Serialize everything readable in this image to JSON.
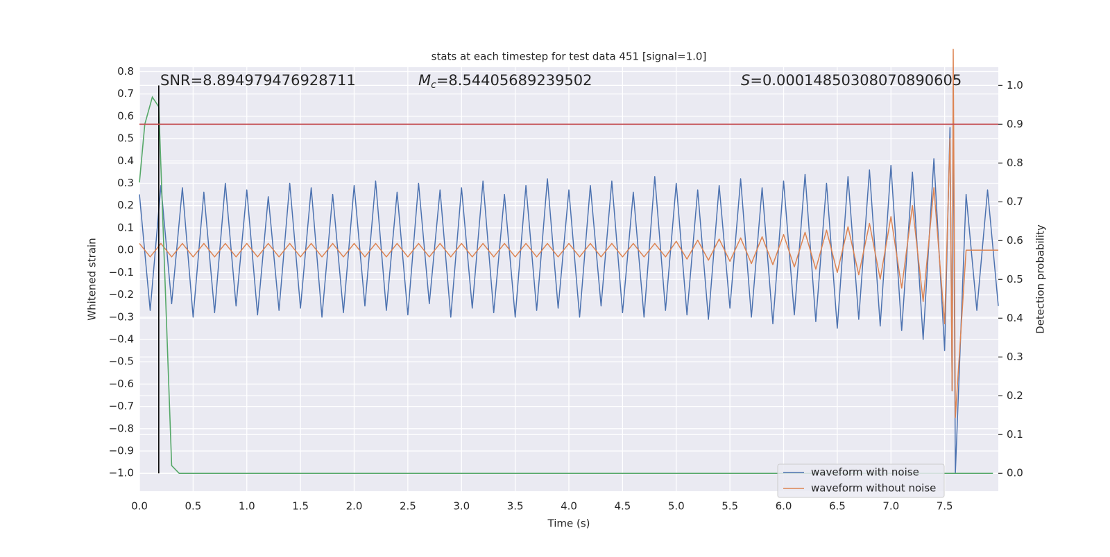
{
  "chart_data": {
    "type": "line",
    "title": "stats at each timestep for test data 451 [signal=1.0]",
    "xlabel": "Time (s)",
    "ylabel": "Whitened strain",
    "y2label": "Detection probability",
    "annotations": [
      {
        "text": "SNR=8.894979476928711"
      },
      {
        "symbol": "M",
        "subscript": "c",
        "text": "=8.54405689239502"
      },
      {
        "symbol": "S",
        "text": "=0.00014850308070890605"
      }
    ],
    "xlim": [
      0,
      8.0
    ],
    "ylim": [
      -1.08,
      0.82
    ],
    "y2lim": [
      -0.046,
      1.047
    ],
    "xticks": [
      {
        "value": 0,
        "label": "0.0"
      },
      0.5,
      {
        "value": 1,
        "label": "1.0"
      },
      1.5,
      {
        "value": 2,
        "label": "2.0"
      },
      2.5,
      {
        "value": 3,
        "label": "3.0"
      },
      3.5,
      {
        "value": 4,
        "label": "4.0"
      },
      4.5,
      {
        "value": 5,
        "label": "5.0"
      },
      5.5,
      {
        "value": 6,
        "label": "6.0"
      },
      6.5,
      {
        "value": 7,
        "label": "7.0"
      },
      7.5
    ],
    "yticks": [
      {
        "value": -1,
        "label": "−1.0"
      },
      {
        "value": -0.9,
        "label": "−0.9"
      },
      {
        "value": -0.8,
        "label": "−0.8"
      },
      {
        "value": -0.7,
        "label": "−0.7"
      },
      {
        "value": -0.6,
        "label": "−0.6"
      },
      {
        "value": -0.5,
        "label": "−0.5"
      },
      {
        "value": -0.4,
        "label": "−0.4"
      },
      {
        "value": -0.3,
        "label": "−0.3"
      },
      {
        "value": -0.2,
        "label": "−0.2"
      },
      {
        "value": -0.1,
        "label": "−0.1"
      },
      {
        "value": 0,
        "label": "0.0"
      },
      0.1,
      0.2,
      0.3,
      0.4,
      0.5,
      0.6,
      0.7,
      0.8
    ],
    "y2ticks": [
      {
        "value": 0,
        "label": "0.0"
      },
      0.1,
      0.2,
      0.3,
      0.4,
      0.5,
      0.6,
      0.7,
      0.8,
      0.9,
      {
        "value": 1,
        "label": "1.0"
      }
    ],
    "grid": true,
    "legend": "lower right",
    "x": [
      0.0,
      0.1,
      0.2,
      0.3,
      0.4,
      0.5,
      0.6,
      0.7,
      0.8,
      0.9,
      1.0,
      1.1,
      1.2,
      1.3,
      1.4,
      1.5,
      1.6,
      1.7,
      1.8,
      1.9,
      2.0,
      2.1,
      2.2,
      2.3,
      2.4,
      2.5,
      2.6,
      2.7,
      2.8,
      2.9,
      3.0,
      3.1,
      3.2,
      3.3,
      3.4,
      3.5,
      3.6,
      3.7,
      3.8,
      3.9,
      4.0,
      4.1,
      4.2,
      4.3,
      4.4,
      4.5,
      4.6,
      4.7,
      4.8,
      4.9,
      5.0,
      5.1,
      5.2,
      5.3,
      5.4,
      5.5,
      5.6,
      5.7,
      5.8,
      5.9,
      6.0,
      6.1,
      6.2,
      6.3,
      6.4,
      6.5,
      6.6,
      6.7,
      6.8,
      6.9,
      7.0,
      7.1,
      7.2,
      7.3,
      7.4,
      7.5,
      7.55,
      7.57,
      7.58,
      7.6,
      7.7,
      7.8,
      7.9,
      8.0
    ],
    "series": [
      {
        "name": "waveform with noise",
        "color": "#4c72b0",
        "values": [
          0.25,
          -0.27,
          0.29,
          -0.24,
          0.28,
          -0.3,
          0.26,
          -0.28,
          0.3,
          -0.25,
          0.27,
          -0.29,
          0.24,
          -0.27,
          0.3,
          -0.26,
          0.28,
          -0.3,
          0.25,
          -0.28,
          0.29,
          -0.25,
          0.31,
          -0.27,
          0.26,
          -0.29,
          0.3,
          -0.24,
          0.27,
          -0.3,
          0.28,
          -0.26,
          0.31,
          -0.28,
          0.25,
          -0.3,
          0.29,
          -0.27,
          0.32,
          -0.26,
          0.27,
          -0.3,
          0.29,
          -0.25,
          0.31,
          -0.28,
          0.26,
          -0.3,
          0.33,
          -0.27,
          0.3,
          -0.29,
          0.27,
          -0.31,
          0.29,
          -0.26,
          0.32,
          -0.3,
          0.28,
          -0.33,
          0.31,
          -0.29,
          0.34,
          -0.32,
          0.3,
          -0.35,
          0.33,
          -0.31,
          0.36,
          -0.34,
          0.38,
          -0.36,
          0.35,
          -0.4,
          0.41,
          -0.45,
          0.55,
          -0.63,
          0.73,
          -1.0,
          0.25,
          -0.27,
          0.27,
          -0.25
        ]
      },
      {
        "name": "waveform without noise",
        "color": "#dd8452",
        "values": [
          0.03,
          -0.03,
          0.03,
          -0.03,
          0.03,
          -0.03,
          0.03,
          -0.03,
          0.03,
          -0.03,
          0.03,
          -0.03,
          0.03,
          -0.03,
          0.03,
          -0.03,
          0.03,
          -0.03,
          0.03,
          -0.03,
          0.03,
          -0.03,
          0.03,
          -0.03,
          0.03,
          -0.03,
          0.03,
          -0.03,
          0.03,
          -0.03,
          0.03,
          -0.03,
          0.03,
          -0.03,
          0.03,
          -0.03,
          0.03,
          -0.03,
          0.03,
          -0.03,
          0.03,
          -0.03,
          0.03,
          -0.03,
          0.03,
          -0.03,
          0.03,
          -0.03,
          0.03,
          -0.03,
          0.04,
          -0.04,
          0.045,
          -0.045,
          0.05,
          -0.05,
          0.055,
          -0.06,
          0.06,
          -0.065,
          0.07,
          -0.075,
          0.08,
          -0.085,
          0.09,
          -0.1,
          0.105,
          -0.11,
          0.12,
          -0.13,
          0.15,
          -0.17,
          0.2,
          -0.23,
          0.28,
          -0.33,
          0.5,
          -0.63,
          0.9,
          -0.75,
          0,
          0,
          0,
          0
        ]
      }
    ],
    "probability": {
      "color": "#55a868",
      "x": [
        0.0,
        0.05,
        0.12,
        0.18,
        0.3,
        0.37,
        7.95
      ],
      "values": [
        0.75,
        0.9,
        0.97,
        0.945,
        0.02,
        0.0,
        0.0
      ]
    },
    "vlines": [
      {
        "x": 0.18,
        "y2range": [
          0,
          1
        ],
        "color": "#000000"
      }
    ],
    "hlines": [
      {
        "y2": 0.9,
        "color": "#c44e52"
      }
    ]
  }
}
